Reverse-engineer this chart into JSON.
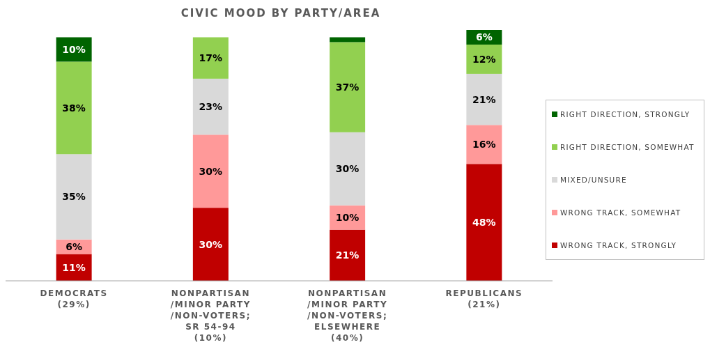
{
  "chart_data": {
    "type": "bar",
    "stacked": true,
    "title": "CIVIC MOOD BY PARTY/AREA",
    "categories": [
      "DEMOCRATS\n(29%)",
      "NONPARTISAN\n/MINOR PARTY\n/NON-VOTERS;\nSR 54-94\n(10%)",
      "NONPARTISAN\n/MINOR PARTY\n/NON-VOTERS;\nELSEWHERE\n(40%)",
      "REPUBLICANS\n(21%)"
    ],
    "series": [
      {
        "name": "WRONG TRACK, STRONGLY",
        "color": "#c00000",
        "values": [
          11,
          30,
          21,
          48
        ],
        "value_labels": [
          "11%",
          "30%",
          "21%",
          "48%"
        ]
      },
      {
        "name": "WRONG TRACK, SOMEWHAT",
        "color": "#ff9999",
        "values": [
          6,
          30,
          10,
          16
        ],
        "value_labels": [
          "6%",
          "30%",
          "10%",
          "16%"
        ]
      },
      {
        "name": "MIXED/UNSURE",
        "color": "#d9d9d9",
        "values": [
          35,
          23,
          30,
          21
        ],
        "value_labels": [
          "35%",
          "23%",
          "30%",
          "21%"
        ]
      },
      {
        "name": "RIGHT DIRECTION, SOMEWHAT",
        "color": "#92d050",
        "values": [
          38,
          17,
          37,
          12
        ],
        "value_labels": [
          "38%",
          "17%",
          "37%",
          "12%"
        ]
      },
      {
        "name": "RIGHT DIRECTION, STRONGLY",
        "color": "#006400",
        "values": [
          10,
          0,
          2,
          6
        ],
        "value_labels": [
          "10%",
          null,
          null,
          "6%"
        ]
      }
    ],
    "legend": "right"
  }
}
